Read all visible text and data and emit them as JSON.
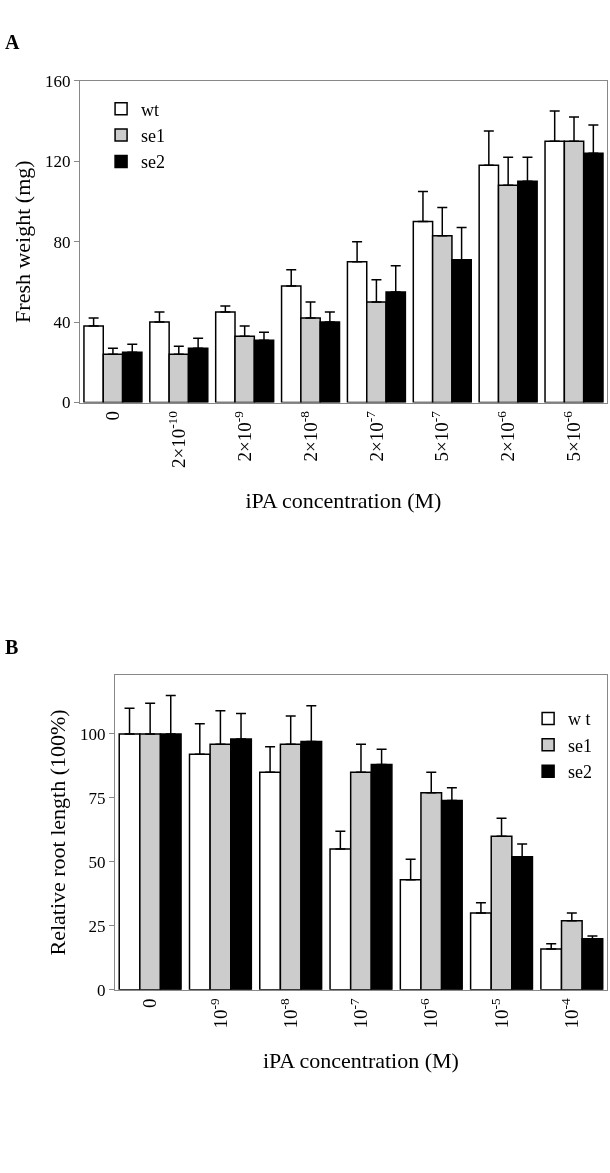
{
  "chart_data": [
    {
      "type": "bar",
      "title": "A",
      "xlabel": "iPA concentration (M)",
      "ylabel": "Fresh weight (mg)",
      "categories": [
        "0",
        "2×10$^{-10}$",
        "2×10$^{-9}$",
        "2×10$^{-8}$",
        "2×10$^{-7}$",
        "5×10$^{-7}$",
        "2×10$^{-6}$",
        "5×10$^{-6}$"
      ],
      "ylim": [
        0,
        160
      ],
      "yticks": [
        0,
        40,
        80,
        120,
        160
      ],
      "legend": "top left",
      "series": [
        {
          "name": "wt",
          "color": "#ffffff",
          "values": [
            38,
            40,
            45,
            58,
            70,
            90,
            118,
            130
          ],
          "errors": [
            [
              38,
              42
            ],
            [
              40,
              45
            ],
            [
              45,
              48
            ],
            [
              58,
              66
            ],
            [
              70,
              80
            ],
            [
              90,
              105
            ],
            [
              118,
              135
            ],
            [
              130,
              145
            ]
          ]
        },
        {
          "name": "se1",
          "color": "#cccccc",
          "values": [
            24,
            24,
            33,
            42,
            50,
            83,
            108,
            130
          ],
          "errors": [
            [
              24,
              27
            ],
            [
              24,
              28
            ],
            [
              33,
              38
            ],
            [
              42,
              50
            ],
            [
              50,
              61
            ],
            [
              83,
              97
            ],
            [
              108,
              122
            ],
            [
              130,
              142
            ]
          ]
        },
        {
          "name": "se2",
          "color": "#000000",
          "values": [
            25,
            27,
            31,
            40,
            55,
            71,
            110,
            124
          ],
          "errors": [
            [
              25,
              29
            ],
            [
              27,
              32
            ],
            [
              31,
              35
            ],
            [
              40,
              45
            ],
            [
              55,
              68
            ],
            [
              71,
              87
            ],
            [
              110,
              122
            ],
            [
              124,
              138
            ]
          ]
        }
      ]
    },
    {
      "type": "bar",
      "title": "B",
      "xlabel": "iPA concentration (M)",
      "ylabel": "Relative root length (100%)",
      "categories": [
        "0",
        "10$^{-9}$",
        "10$^{-8}$",
        "10$^{-7}$",
        "10$^{-6}$",
        "10$^{-5}$",
        "10$^{-4}$"
      ],
      "ylim": [
        0,
        123
      ],
      "yticks": [
        0,
        25,
        50,
        75,
        100
      ],
      "legend": "top right",
      "series": [
        {
          "name": "w t",
          "color": "#ffffff",
          "values": [
            100,
            92,
            85,
            55,
            43,
            30,
            16
          ],
          "errors": [
            [
              100,
              110
            ],
            [
              92,
              104
            ],
            [
              85,
              95
            ],
            [
              55,
              62
            ],
            [
              43,
              51
            ],
            [
              30,
              34
            ],
            [
              16,
              18
            ]
          ]
        },
        {
          "name": "se1",
          "color": "#cccccc",
          "values": [
            100,
            96,
            96,
            85,
            77,
            60,
            27
          ],
          "errors": [
            [
              100,
              112
            ],
            [
              96,
              109
            ],
            [
              96,
              107
            ],
            [
              85,
              96
            ],
            [
              77,
              85
            ],
            [
              60,
              67
            ],
            [
              27,
              30
            ]
          ]
        },
        {
          "name": "se2",
          "color": "#000000",
          "values": [
            100,
            98,
            97,
            88,
            74,
            52,
            20
          ],
          "errors": [
            [
              100,
              115
            ],
            [
              98,
              108
            ],
            [
              97,
              111
            ],
            [
              88,
              94
            ],
            [
              74,
              79
            ],
            [
              52,
              57
            ],
            [
              20,
              21
            ]
          ]
        }
      ]
    }
  ]
}
